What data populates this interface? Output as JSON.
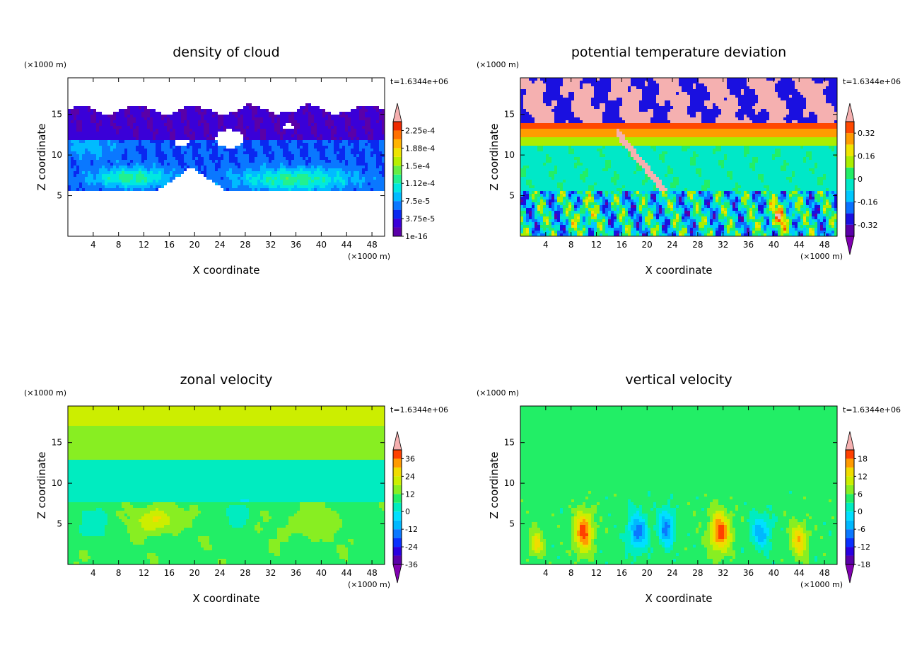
{
  "figure": {
    "panel_ids": [
      "density-of-cloud",
      "potential-temperature-deviation",
      "zonal-velocity",
      "vertical-velocity"
    ]
  },
  "chart_data": [
    {
      "id": "density-of-cloud",
      "type": "heatmap",
      "title": "density of cloud",
      "xlabel": "X coordinate",
      "ylabel": "Z coordinate",
      "x_unit": "(×1000 m)",
      "z_unit": "(×1000 m)",
      "time_label": "t=1.6344e+06",
      "xlim": [
        0,
        50
      ],
      "ylim": [
        0,
        19.5
      ],
      "x_ticks": [
        4,
        8,
        12,
        16,
        20,
        24,
        28,
        32,
        36,
        40,
        44,
        48
      ],
      "x_tick_labels": [
        "4",
        "8",
        "12",
        "16",
        "20",
        "24",
        "28",
        "32",
        "36",
        "40",
        "44",
        "48"
      ],
      "y_ticks": [
        5,
        10,
        15
      ],
      "y_tick_labels": [
        "5",
        "10",
        "15"
      ],
      "colorbar": {
        "levels": 13,
        "colors": [
          "#5a00a8",
          "#3a00d8",
          "#0a28f0",
          "#0a78ff",
          "#00bbff",
          "#00e8e0",
          "#22f090",
          "#66ee44",
          "#b8ee00",
          "#eee400",
          "#ffb400",
          "#ff7000",
          "#ee2800"
        ],
        "top_color": "#f5b0b0",
        "label_values": [
          "2.25e-4",
          "1.88e-4",
          "1.5e-4",
          "1.12e-4",
          "7.5e-5",
          "3.75e-5",
          "1e-16"
        ],
        "label_levels": [
          12,
          10,
          8,
          6,
          4,
          2,
          0
        ],
        "arrow_top": true,
        "arrow_bottom": false
      },
      "field_pattern": "cloud"
    },
    {
      "id": "potential-temperature-deviation",
      "type": "heatmap",
      "title": "potential temperature deviation",
      "xlabel": "X coordinate",
      "ylabel": "Z coordinate",
      "x_unit": "(×1000 m)",
      "z_unit": "(×1000 m)",
      "time_label": "t=1.6344e+06",
      "xlim": [
        0,
        50
      ],
      "ylim": [
        0,
        19.5
      ],
      "x_ticks": [
        4,
        8,
        12,
        16,
        20,
        24,
        28,
        32,
        36,
        40,
        44,
        48
      ],
      "x_tick_labels": [
        "4",
        "8",
        "12",
        "16",
        "20",
        "24",
        "28",
        "32",
        "36",
        "40",
        "44",
        "48"
      ],
      "y_ticks": [
        5,
        10,
        15
      ],
      "y_tick_labels": [
        "5",
        "10",
        "15"
      ],
      "colorbar": {
        "levels": 10,
        "colors": [
          "#5a00a8",
          "#1a10e0",
          "#0a70ff",
          "#00c8ff",
          "#00e8c8",
          "#22ee66",
          "#aaee00",
          "#f0e400",
          "#ff9c00",
          "#ff4800"
        ],
        "top_color": "#f5b0b0",
        "bottom_color": "#8000b0",
        "label_values": [
          "0.32",
          "0.16",
          "0",
          "-0.16",
          "-0.32"
        ],
        "label_levels": [
          9,
          7,
          5,
          3,
          1
        ],
        "arrow_top": true,
        "arrow_bottom": true
      },
      "field_pattern": "theta"
    },
    {
      "id": "zonal-velocity",
      "type": "heatmap",
      "title": "zonal velocity",
      "xlabel": "X coordinate",
      "ylabel": "Z coordinate",
      "x_unit": "(×1000 m)",
      "z_unit": "(×1000 m)",
      "time_label": "t=1.6344e+06",
      "xlim": [
        0,
        50
      ],
      "ylim": [
        0,
        19.5
      ],
      "x_ticks": [
        4,
        8,
        12,
        16,
        20,
        24,
        28,
        32,
        36,
        40,
        44,
        48
      ],
      "x_tick_labels": [
        "4",
        "8",
        "12",
        "16",
        "20",
        "24",
        "28",
        "32",
        "36",
        "40",
        "44",
        "48"
      ],
      "y_ticks": [
        5,
        10,
        15
      ],
      "y_tick_labels": [
        "5",
        "10",
        "15"
      ],
      "colorbar": {
        "levels": 13,
        "colors": [
          "#5a00a8",
          "#2a00e0",
          "#0a30ff",
          "#0a78ff",
          "#00b8ff",
          "#00e0ff",
          "#00ecc0",
          "#22ee66",
          "#88ee22",
          "#ccee00",
          "#f0dc00",
          "#ff9a00",
          "#ff4000"
        ],
        "top_color": "#f5b0b0",
        "bottom_color": "#8000b0",
        "label_values": [
          "36",
          "24",
          "12",
          "0",
          "-12",
          "-24",
          "-36"
        ],
        "label_levels": [
          12,
          10,
          8,
          6,
          4,
          2,
          0
        ],
        "arrow_top": true,
        "arrow_bottom": true
      },
      "field_pattern": "zonal"
    },
    {
      "id": "vertical-velocity",
      "type": "heatmap",
      "title": "vertical velocity",
      "xlabel": "X coordinate",
      "ylabel": "Z coordinate",
      "x_unit": "(×1000 m)",
      "z_unit": "(×1000 m)",
      "time_label": "t=1.6344e+06",
      "xlim": [
        0,
        50
      ],
      "ylim": [
        0,
        19.5
      ],
      "x_ticks": [
        4,
        8,
        12,
        16,
        20,
        24,
        28,
        32,
        36,
        40,
        44,
        48
      ],
      "x_tick_labels": [
        "4",
        "8",
        "12",
        "16",
        "20",
        "24",
        "28",
        "32",
        "36",
        "40",
        "44",
        "48"
      ],
      "y_ticks": [
        5,
        10,
        15
      ],
      "y_tick_labels": [
        "5",
        "10",
        "15"
      ],
      "colorbar": {
        "levels": 13,
        "colors": [
          "#5a00a8",
          "#2a00e0",
          "#0a30ff",
          "#0a78ff",
          "#00b8ff",
          "#00e0ff",
          "#00ecc0",
          "#22ee66",
          "#88ee22",
          "#ccee00",
          "#f0dc00",
          "#ff9a00",
          "#ff4000"
        ],
        "top_color": "#f5b0b0",
        "bottom_color": "#8000b0",
        "label_values": [
          "18",
          "12",
          "6",
          "0",
          "-6",
          "-12",
          "-18"
        ],
        "label_levels": [
          12,
          10,
          8,
          6,
          4,
          2,
          0
        ],
        "arrow_top": true,
        "arrow_bottom": true
      },
      "field_pattern": "vertical"
    }
  ]
}
